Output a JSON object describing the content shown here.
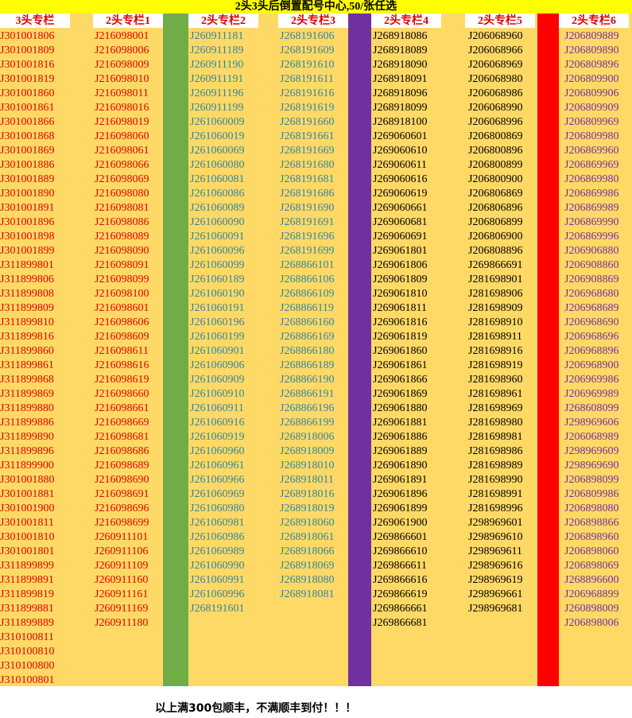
{
  "title": "2头3头后倒置配号中心,50/张任选",
  "columns": [
    {
      "header": "3头专栏",
      "items": [
        "J301001806",
        "J301001809",
        "J301001816",
        "J301001819",
        "J301001860",
        "J301001861",
        "J301001866",
        "J301001868",
        "J301001869",
        "J301001886",
        "J301001889",
        "J301001890",
        "J301001891",
        "J301001896",
        "J301001898",
        "J301001899",
        "J311899801",
        "J311899806",
        "J311899808",
        "J311899809",
        "J311899810",
        "J311899816",
        "J311899860",
        "J311899861",
        "J311899868",
        "J311899869",
        "J311899880",
        "J311899886",
        "J311899890",
        "J311899896",
        "J311899900",
        "J301001880",
        "J301001881",
        "J301001900",
        "J301001811",
        "J301001810",
        "J301001801",
        "J311899899",
        "J311899891",
        "J311899819",
        "J311899881",
        "J311899889",
        "J310100811",
        "J310100810",
        "J310100800",
        "J310100801"
      ]
    },
    {
      "header": "2头专栏1",
      "items": [
        "J216098001",
        "J216098006",
        "J216098009",
        "J216098010",
        "J216098011",
        "J216098016",
        "J216098019",
        "J216098060",
        "J216098061",
        "J216098066",
        "J216098069",
        "J216098080",
        "J216098081",
        "J216098086",
        "J216098089",
        "J216098090",
        "J216098091",
        "J216098099",
        "J216098100",
        "J216098601",
        "J216098606",
        "J216098609",
        "J216098611",
        "J216098616",
        "J216098619",
        "J216098660",
        "J216098661",
        "J216098669",
        "J216098681",
        "J216098686",
        "J216098689",
        "J216098690",
        "J216098691",
        "J216098696",
        "J216098699",
        "J260911101",
        "J260911106",
        "J260911109",
        "J260911160",
        "J260911161",
        "J260911169",
        "J260911180"
      ]
    },
    {
      "header": "2头专栏2",
      "items": [
        "J260911181",
        "J260911189",
        "J260911190",
        "J260911191",
        "J260911196",
        "J260911199",
        "J261060009",
        "J261060019",
        "J261060069",
        "J261060080",
        "J261060081",
        "J261060086",
        "J261060089",
        "J261060090",
        "J261060091",
        "J261060096",
        "J261060099",
        "J261060189",
        "J261060190",
        "J261060191",
        "J261060196",
        "J261060199",
        "J261060901",
        "J261060906",
        "J261060909",
        "J261060910",
        "J261060911",
        "J261060916",
        "J261060919",
        "J261060960",
        "J261060961",
        "J261060966",
        "J261060969",
        "J261060980",
        "J261060981",
        "J261060986",
        "J261060989",
        "J261060990",
        "J261060991",
        "J261060996",
        "J268191601"
      ]
    },
    {
      "header": "2头专栏3",
      "items": [
        "J268191606",
        "J268191609",
        "J268191610",
        "J268191611",
        "J268191616",
        "J268191619",
        "J268191660",
        "J268191661",
        "J268191669",
        "J268191680",
        "J268191681",
        "J268191686",
        "J268191690",
        "J268191691",
        "J268191696",
        "J268191699",
        "J268866101",
        "J268866106",
        "J268866109",
        "J268866119",
        "J268866160",
        "J268866169",
        "J268866180",
        "J268866189",
        "J268866190",
        "J268866191",
        "J268866196",
        "J268866199",
        "J268918006",
        "J268918009",
        "J268918010",
        "J268918011",
        "J268918016",
        "J268918019",
        "J268918060",
        "J268918061",
        "J268918066",
        "J268918069",
        "J268918080",
        "J268918081"
      ]
    },
    {
      "header": "2头专栏4",
      "items": [
        "J268918086",
        "J268918089",
        "J268918090",
        "J268918091",
        "J268918096",
        "J268918099",
        "J268918100",
        "J269060601",
        "J269060610",
        "J269060611",
        "J269060616",
        "J269060619",
        "J269060661",
        "J269060681",
        "J269060691",
        "J269061801",
        "J269061806",
        "J269061809",
        "J269061810",
        "J269061811",
        "J269061816",
        "J269061819",
        "J269061860",
        "J269061861",
        "J269061866",
        "J269061869",
        "J269061880",
        "J269061881",
        "J269061886",
        "J269061889",
        "J269061890",
        "J269061891",
        "J269061896",
        "J269061899",
        "J269061900",
        "J269866601",
        "J269866610",
        "J269866611",
        "J269866616",
        "J269866619",
        "J269866661",
        "J269866681"
      ]
    },
    {
      "header": "2头专栏5",
      "items": [
        "J206068960",
        "J206068966",
        "J206068969",
        "J206068980",
        "J206068986",
        "J206068990",
        "J206068996",
        "J206800869",
        "J206800896",
        "J206800899",
        "J206800900",
        "J206806869",
        "J206806896",
        "J206806899",
        "J206806900",
        "J206808896",
        "J269866691",
        "J281698901",
        "J281698906",
        "J281698909",
        "J281698910",
        "J281698911",
        "J281698916",
        "J281698919",
        "J281698960",
        "J281698961",
        "J281698969",
        "J281698980",
        "J281698981",
        "J281698986",
        "J281698989",
        "J281698990",
        "J281698991",
        "J281698996",
        "J298969601",
        "J298969610",
        "J298969611",
        "J298969616",
        "J298969619",
        "J298969661",
        "J298969681"
      ]
    },
    {
      "header": "2头专栏6",
      "items": [
        "J206809889",
        "J206809890",
        "J206809896",
        "J206809900",
        "J206809906",
        "J206809909",
        "J206809969",
        "J206809980",
        "J206869960",
        "J206869969",
        "J206869980",
        "J206869986",
        "J206869989",
        "J206869990",
        "J206869996",
        "J206906880",
        "J206908860",
        "J206908869",
        "J206968680",
        "J206968689",
        "J206968690",
        "J206968696",
        "J206968896",
        "J206968900",
        "J206969986",
        "J206969989",
        "J268608099",
        "J298969606",
        "J206068989",
        "J298969609",
        "J298969690",
        "J206898099",
        "J206809986",
        "J206898080",
        "J206898866",
        "J206898960",
        "J206898060",
        "J206898069",
        "J268896600",
        "J206968899",
        "J260898009",
        "J206898006"
      ]
    }
  ],
  "footer": "以上满300包顺丰，不满顺丰到付！！！"
}
